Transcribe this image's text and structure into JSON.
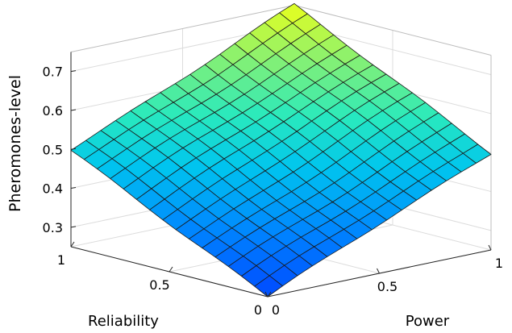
{
  "chart_data": {
    "type": "surface",
    "title": "",
    "xlabel": "Power",
    "ylabel": "Reliability",
    "zlabel": "Pheromones-level",
    "xlim": [
      0,
      1
    ],
    "ylim": [
      0,
      1
    ],
    "zlim": [
      0.25,
      0.75
    ],
    "xticks": [
      0,
      0.5,
      1
    ],
    "yticks": [
      0,
      0.5,
      1
    ],
    "zticks": [
      0.3,
      0.4,
      0.5,
      0.6,
      0.7
    ],
    "x_tick_labels": [
      "0",
      "0.5",
      "1"
    ],
    "y_tick_labels": [
      "0",
      "0.5",
      "1"
    ],
    "z_tick_labels": [
      "0.3",
      "0.4",
      "0.5",
      "0.6",
      "0.7"
    ],
    "grid": true,
    "colormap": "parula",
    "grid_points": 16,
    "corner_values": {
      "power0_reliability0": 0.25,
      "power1_reliability0": 0.5,
      "power0_reliability1": 0.5,
      "power1_reliability1": 0.75
    },
    "model": "pheromones ≈ 0.25 + 0.25*power + 0.25*reliability"
  }
}
